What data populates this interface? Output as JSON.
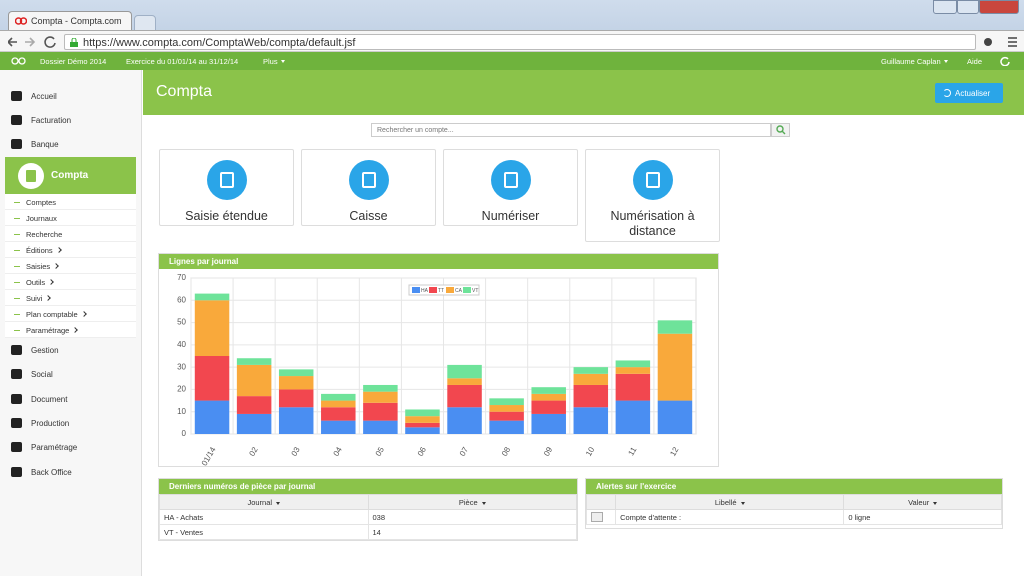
{
  "browser": {
    "tab_title": "Compta - Compta.com",
    "url": "https://www.compta.com/ComptaWeb/compta/default.jsf"
  },
  "topbar": {
    "items": [
      "Dossier Démo 2014",
      "Exercice du 01/01/14 au 31/12/14",
      "Plus"
    ],
    "user": "Guillaume Caplan",
    "help": "Aide"
  },
  "sidebar": {
    "top": [
      "Accueil",
      "Facturation",
      "Banque"
    ],
    "active": "Compta",
    "sub": [
      "Comptes",
      "Journaux",
      "Recherche",
      "Éditions",
      "Saisies",
      "Outils",
      "Suivi",
      "Plan comptable",
      "Paramétrage"
    ],
    "bottom": [
      "Gestion",
      "Social",
      "Document",
      "Production",
      "Paramétrage",
      "Back Office"
    ]
  },
  "header": {
    "title": "Compta",
    "button": "Actualiser"
  },
  "search": {
    "placeholder": "Rechercher un compte..."
  },
  "tiles": [
    "Saisie étendue",
    "Caisse",
    "Numériser",
    "Numérisation à distance"
  ],
  "chart_data": {
    "type": "bar",
    "stacked": true,
    "title": "Lignes par journal",
    "categories": [
      "01/14",
      "02",
      "03",
      "04",
      "05",
      "06",
      "07",
      "08",
      "09",
      "10",
      "11",
      "12"
    ],
    "series": [
      {
        "name": "HA",
        "color": "#4a8ef2",
        "values": [
          15,
          9,
          12,
          6,
          6,
          3,
          12,
          6,
          9,
          12,
          15,
          15
        ]
      },
      {
        "name": "TT",
        "color": "#f2474f",
        "values": [
          20,
          8,
          8,
          6,
          8,
          2,
          10,
          4,
          6,
          10,
          12,
          0
        ]
      },
      {
        "name": "CA",
        "color": "#f9a93b",
        "values": [
          25,
          14,
          6,
          3,
          5,
          3,
          3,
          3,
          3,
          5,
          3,
          30
        ]
      },
      {
        "name": "VT",
        "color": "#6ee39a",
        "values": [
          3,
          3,
          3,
          3,
          3,
          3,
          6,
          3,
          3,
          3,
          3,
          6
        ]
      }
    ],
    "ylim": [
      0,
      70
    ],
    "yticks": [
      0,
      10,
      20,
      30,
      40,
      50,
      60,
      70
    ],
    "grid": true,
    "legend": "top"
  },
  "pieces": {
    "title": "Derniers numéros de pièce par journal",
    "columns": [
      "Journal",
      "Pièce"
    ],
    "rows": [
      [
        "HA - Achats",
        "038"
      ],
      [
        "VT - Ventes",
        "14"
      ]
    ]
  },
  "alertes": {
    "title": "Alertes sur l'exercice",
    "columns": [
      "Libellé",
      "Valeur"
    ],
    "rows": [
      [
        "Compte d'attente :",
        "0 ligne"
      ]
    ]
  }
}
